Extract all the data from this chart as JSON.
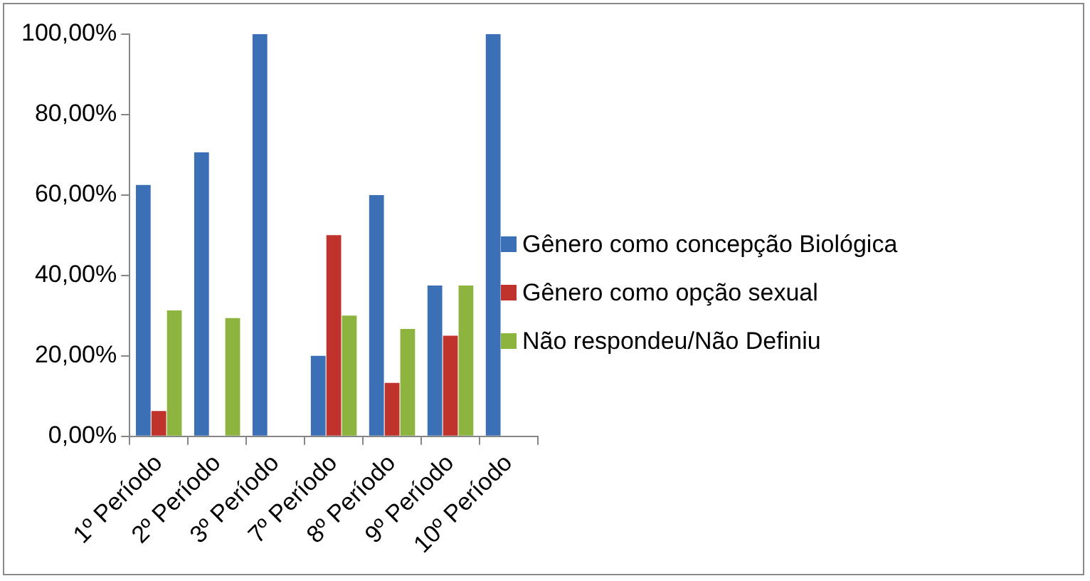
{
  "chart_data": {
    "type": "bar",
    "categories": [
      "1º Período",
      "2º Período",
      "3º Período",
      "7º Período",
      "8º Período",
      "9º Período",
      "10º Período"
    ],
    "series": [
      {
        "name": "Gênero como concepção Biológica",
        "color": "#3b6fb6",
        "values": [
          62.5,
          70.6,
          100,
          20,
          60,
          37.5,
          100
        ]
      },
      {
        "name": "Gênero como opção sexual",
        "color": "#c0332c",
        "values": [
          6.3,
          0,
          0,
          50,
          13.3,
          25,
          0
        ]
      },
      {
        "name": "Não respondeu/Não Definiu",
        "color": "#8db43e",
        "values": [
          31.3,
          29.4,
          0,
          30,
          26.7,
          37.5,
          0
        ]
      }
    ],
    "ylim": [
      0,
      100
    ],
    "yticks": [
      {
        "value": 0,
        "label": "0,00%"
      },
      {
        "value": 20,
        "label": "20,00%"
      },
      {
        "value": 40,
        "label": "40,00%"
      },
      {
        "value": 60,
        "label": "60,00%"
      },
      {
        "value": 80,
        "label": "80,00%"
      },
      {
        "value": 100,
        "label": "100,00%"
      }
    ],
    "grid": false,
    "legend": "right"
  }
}
